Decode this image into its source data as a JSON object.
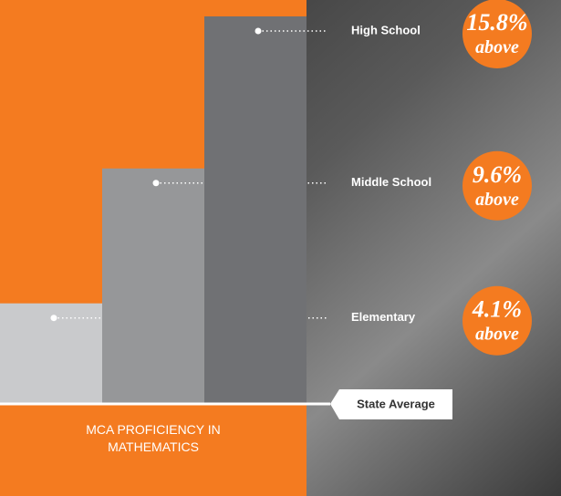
{
  "chart_data": {
    "type": "bar",
    "title": "MCA PROFICIENCY IN MATHEMATICS",
    "categories": [
      "Elementary",
      "Middle School",
      "High School"
    ],
    "values": [
      4.1,
      9.6,
      15.8
    ],
    "value_labels": [
      "4.1%",
      "9.6%",
      "15.8%"
    ],
    "annotation": "above",
    "baseline_label": "State Average",
    "colors": [
      "#c9cacc",
      "#969799",
      "#707174"
    ],
    "label_color": "#f47b20"
  }
}
